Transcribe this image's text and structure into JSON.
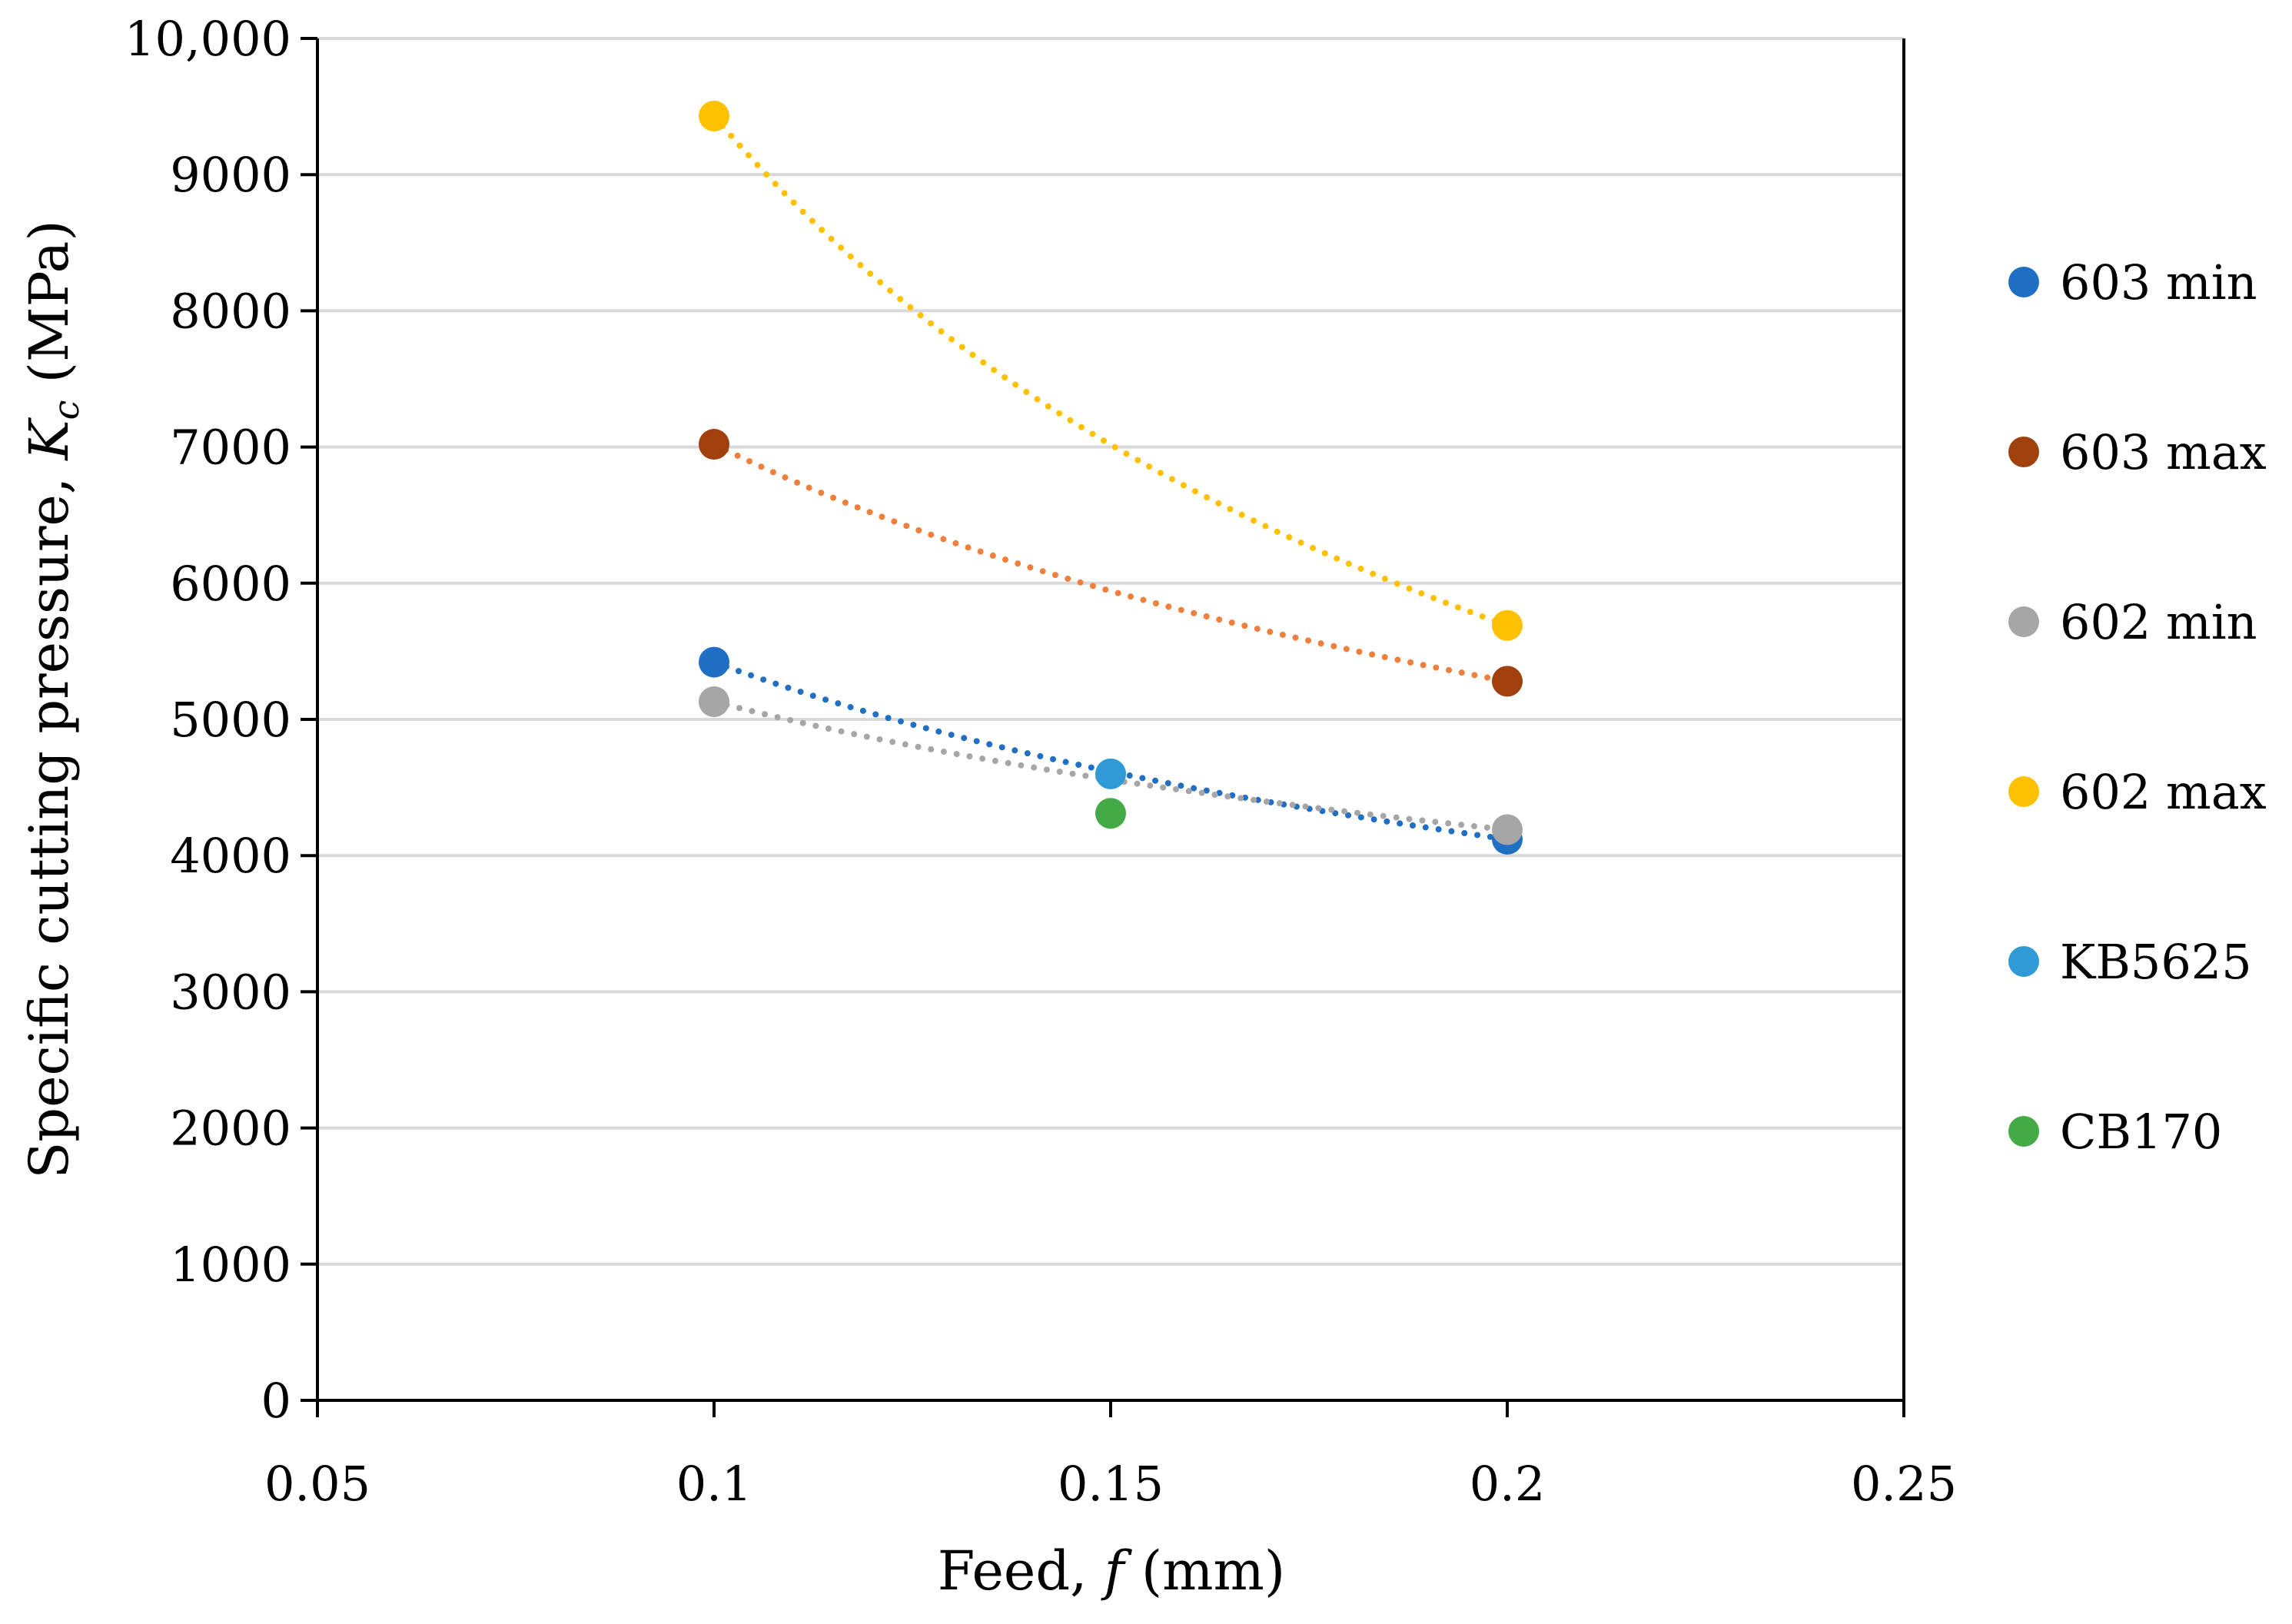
{
  "chart_data": {
    "type": "scatter",
    "xlabel": {
      "prefix": "Feed, ",
      "var": "f",
      "suffix": " (mm)"
    },
    "ylabel": {
      "prefix": "Specific cutting pressure, ",
      "var": "K",
      "sub": "c",
      "suffix": " (MPa)"
    },
    "xlim": [
      0.05,
      0.25
    ],
    "ylim": [
      0,
      10000
    ],
    "x_ticks": [
      0.05,
      0.1,
      0.15,
      0.2,
      0.25
    ],
    "x_tick_labels": [
      "0.05",
      "0.1",
      "0.15",
      "0.2",
      "0.25"
    ],
    "y_ticks": [
      0,
      1000,
      2000,
      3000,
      4000,
      5000,
      6000,
      7000,
      8000,
      9000,
      10000
    ],
    "y_tick_labels": [
      "0",
      "1000",
      "2000",
      "3000",
      "4000",
      "5000",
      "6000",
      "7000",
      "8000",
      "9000",
      "10,000"
    ],
    "grid": "horizontal",
    "legend_position": "right",
    "series": [
      {
        "name": "603 min",
        "color": "#1f6fc5",
        "trend_color": "#1f6fc5",
        "points": [
          [
            0.1,
            5420
          ],
          [
            0.2,
            4120
          ]
        ]
      },
      {
        "name": "603 max",
        "color": "#a0410d",
        "trend_color": "#f07f3c",
        "points": [
          [
            0.1,
            7020
          ],
          [
            0.2,
            5280
          ]
        ]
      },
      {
        "name": "602 min",
        "color": "#a6a6a6",
        "trend_color": "#a6a6a6",
        "points": [
          [
            0.1,
            5130
          ],
          [
            0.2,
            4190
          ]
        ]
      },
      {
        "name": "602 max",
        "color": "#ffc000",
        "trend_color": "#ffc000",
        "points": [
          [
            0.1,
            9430
          ],
          [
            0.2,
            5690
          ]
        ]
      },
      {
        "name": "KB5625",
        "color": "#2e9bd6",
        "trend_color": null,
        "points": [
          [
            0.15,
            4600
          ]
        ]
      },
      {
        "name": "CB170",
        "color": "#43aa45",
        "trend_color": null,
        "points": [
          [
            0.15,
            4310
          ]
        ]
      }
    ]
  }
}
